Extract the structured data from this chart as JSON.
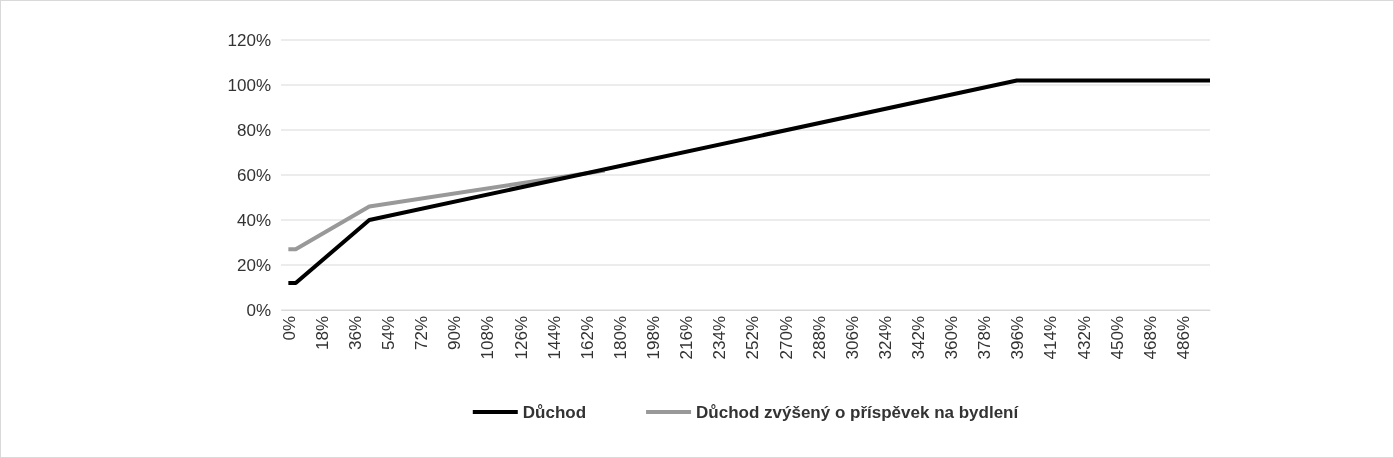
{
  "chart_data": {
    "type": "line",
    "xlim": [
      -4,
      501
    ],
    "ylim": [
      0,
      120
    ],
    "xticks": [
      {
        "value": 0,
        "label": "0%"
      },
      {
        "value": 18,
        "label": "18%"
      },
      {
        "value": 36,
        "label": "36%"
      },
      {
        "value": 54,
        "label": "54%"
      },
      {
        "value": 72,
        "label": "72%"
      },
      {
        "value": 90,
        "label": "90%"
      },
      {
        "value": 108,
        "label": "108%"
      },
      {
        "value": 126,
        "label": "126%"
      },
      {
        "value": 144,
        "label": "144%"
      },
      {
        "value": 162,
        "label": "162%"
      },
      {
        "value": 180,
        "label": "180%"
      },
      {
        "value": 198,
        "label": "198%"
      },
      {
        "value": 216,
        "label": "216%"
      },
      {
        "value": 234,
        "label": "234%"
      },
      {
        "value": 252,
        "label": "252%"
      },
      {
        "value": 270,
        "label": "270%"
      },
      {
        "value": 288,
        "label": "288%"
      },
      {
        "value": 306,
        "label": "306%"
      },
      {
        "value": 324,
        "label": "324%"
      },
      {
        "value": 342,
        "label": "342%"
      },
      {
        "value": 360,
        "label": "360%"
      },
      {
        "value": 378,
        "label": "378%"
      },
      {
        "value": 396,
        "label": "396%"
      },
      {
        "value": 414,
        "label": "414%"
      },
      {
        "value": 432,
        "label": "432%"
      },
      {
        "value": 450,
        "label": "450%"
      },
      {
        "value": 468,
        "label": "468%"
      },
      {
        "value": 486,
        "label": "486%"
      }
    ],
    "yticks": [
      {
        "value": 0,
        "label": "0%"
      },
      {
        "value": 20,
        "label": "20%"
      },
      {
        "value": 40,
        "label": "40%"
      },
      {
        "value": 60,
        "label": "60%"
      },
      {
        "value": 80,
        "label": "80%"
      },
      {
        "value": 100,
        "label": "100%"
      },
      {
        "value": 120,
        "label": "120%"
      }
    ],
    "grid": "y",
    "legend": "bottom",
    "marker": "none",
    "line_style": "solid",
    "series": [
      {
        "name": "Důchod",
        "color": "#000000",
        "x": [
          0,
          4,
          44,
          396,
          501
        ],
        "values": [
          12,
          12,
          40,
          102,
          102
        ]
      },
      {
        "name": "Důchod zvýšený o příspěvek na bydlení",
        "color": "#999999",
        "x": [
          0,
          4,
          44,
          172
        ],
        "values": [
          27,
          27,
          46,
          62
        ]
      }
    ]
  }
}
